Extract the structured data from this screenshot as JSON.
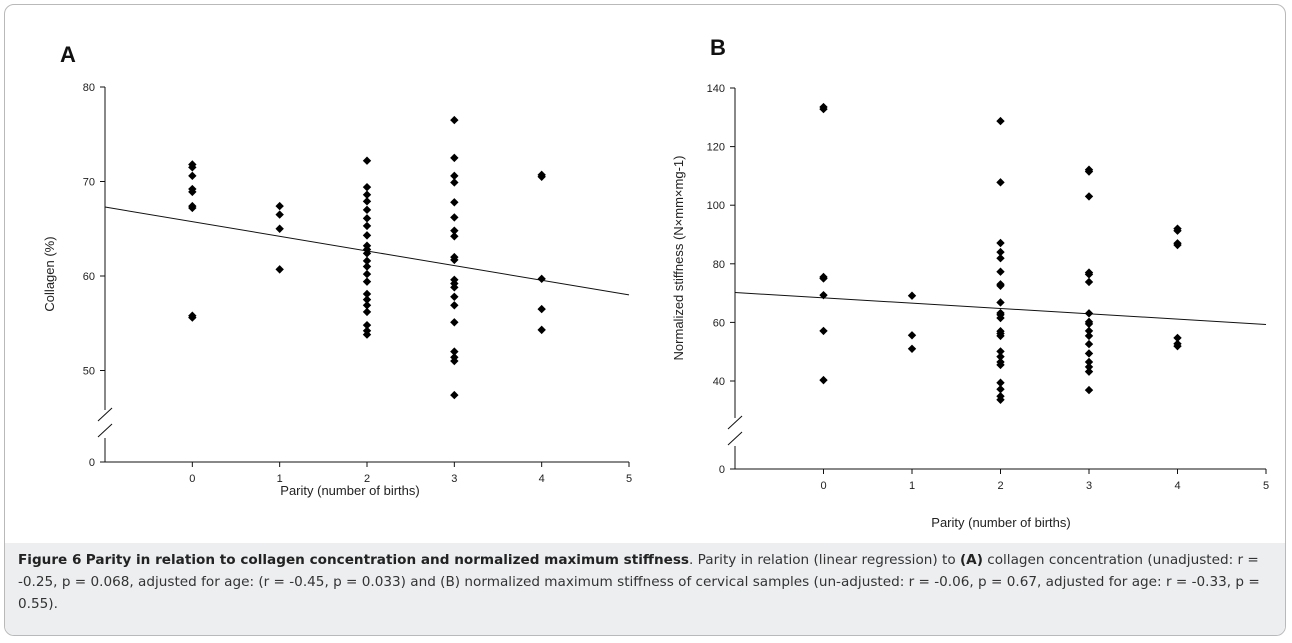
{
  "chart_data": [
    {
      "type": "scatter",
      "panel_label": "A",
      "xlabel": "Parity (number of births)",
      "ylabel": "Collagen (%)",
      "xlim": [
        -1,
        5
      ],
      "ylim_displayed": [
        45,
        80
      ],
      "axis_break": true,
      "x_ticks": [
        "0",
        "1",
        "2",
        "3",
        "4",
        "5"
      ],
      "y_ticks": [
        "0",
        "50",
        "60",
        "70",
        "80"
      ],
      "points": [
        [
          0,
          71.8
        ],
        [
          0,
          71.5
        ],
        [
          0,
          70.6
        ],
        [
          0,
          69.2
        ],
        [
          0,
          68.9
        ],
        [
          0,
          67.4
        ],
        [
          0,
          67.2
        ],
        [
          0,
          55.8
        ],
        [
          0,
          55.6
        ],
        [
          1,
          67.4
        ],
        [
          1,
          66.5
        ],
        [
          1,
          65.0
        ],
        [
          1,
          60.7
        ],
        [
          2,
          72.2
        ],
        [
          2,
          69.4
        ],
        [
          2,
          68.6
        ],
        [
          2,
          67.9
        ],
        [
          2,
          67.0
        ],
        [
          2,
          66.1
        ],
        [
          2,
          65.3
        ],
        [
          2,
          64.3
        ],
        [
          2,
          63.2
        ],
        [
          2,
          62.8
        ],
        [
          2,
          62.4
        ],
        [
          2,
          61.6
        ],
        [
          2,
          61.0
        ],
        [
          2,
          60.2
        ],
        [
          2,
          59.4
        ],
        [
          2,
          58.1
        ],
        [
          2,
          57.5
        ],
        [
          2,
          56.9
        ],
        [
          2,
          56.2
        ],
        [
          2,
          54.8
        ],
        [
          2,
          54.2
        ],
        [
          2,
          53.8
        ],
        [
          3,
          76.5
        ],
        [
          3,
          72.5
        ],
        [
          3,
          70.6
        ],
        [
          3,
          69.9
        ],
        [
          3,
          67.8
        ],
        [
          3,
          66.2
        ],
        [
          3,
          64.8
        ],
        [
          3,
          64.2
        ],
        [
          3,
          62.0
        ],
        [
          3,
          61.7
        ],
        [
          3,
          59.6
        ],
        [
          3,
          59.2
        ],
        [
          3,
          58.8
        ],
        [
          3,
          57.8
        ],
        [
          3,
          56.9
        ],
        [
          3,
          55.1
        ],
        [
          3,
          52.0
        ],
        [
          3,
          51.4
        ],
        [
          3,
          51.0
        ],
        [
          3,
          47.4
        ],
        [
          4,
          70.7
        ],
        [
          4,
          70.5
        ],
        [
          4,
          59.7
        ],
        [
          4,
          56.5
        ],
        [
          4,
          54.3
        ]
      ],
      "regression_line": [
        [
          -1,
          67.3
        ],
        [
          5,
          58.0
        ]
      ]
    },
    {
      "type": "scatter",
      "panel_label": "B",
      "xlabel": "Parity (number of births)",
      "ylabel": "Normalized stiffness (N×mm×mg-1)",
      "xlim": [
        -1,
        5
      ],
      "ylim_displayed": [
        30,
        140
      ],
      "axis_break": true,
      "x_ticks": [
        "0",
        "1",
        "2",
        "3",
        "4",
        "5"
      ],
      "y_ticks": [
        "0",
        "40",
        "60",
        "80",
        "100",
        "120",
        "140"
      ],
      "points": [
        [
          0,
          133.5
        ],
        [
          0,
          132.8
        ],
        [
          0,
          75.5
        ],
        [
          0,
          75.0
        ],
        [
          0,
          69.3
        ],
        [
          0,
          57.1
        ],
        [
          0,
          40.3
        ],
        [
          1,
          69.1
        ],
        [
          1,
          55.6
        ],
        [
          1,
          51.0
        ],
        [
          2,
          128.7
        ],
        [
          2,
          107.8
        ],
        [
          2,
          87.1
        ],
        [
          2,
          84.0
        ],
        [
          2,
          81.9
        ],
        [
          2,
          77.3
        ],
        [
          2,
          73.0
        ],
        [
          2,
          72.5
        ],
        [
          2,
          66.8
        ],
        [
          2,
          63.2
        ],
        [
          2,
          62.6
        ],
        [
          2,
          61.5
        ],
        [
          2,
          57.0
        ],
        [
          2,
          56.2
        ],
        [
          2,
          55.4
        ],
        [
          2,
          50.1
        ],
        [
          2,
          48.3
        ],
        [
          2,
          46.5
        ],
        [
          2,
          45.5
        ],
        [
          2,
          39.4
        ],
        [
          2,
          37.2
        ],
        [
          2,
          34.8
        ],
        [
          2,
          33.6
        ],
        [
          3,
          112.1
        ],
        [
          3,
          111.5
        ],
        [
          3,
          103.0
        ],
        [
          3,
          77.0
        ],
        [
          3,
          76.4
        ],
        [
          3,
          73.8
        ],
        [
          3,
          63.1
        ],
        [
          3,
          60.2
        ],
        [
          3,
          59.5
        ],
        [
          3,
          57.1
        ],
        [
          3,
          55.4
        ],
        [
          3,
          52.6
        ],
        [
          3,
          49.4
        ],
        [
          3,
          46.5
        ],
        [
          3,
          44.8
        ],
        [
          3,
          43.2
        ],
        [
          3,
          36.9
        ],
        [
          4,
          92.0
        ],
        [
          4,
          91.3
        ],
        [
          4,
          87.0
        ],
        [
          4,
          86.4
        ],
        [
          4,
          54.7
        ],
        [
          4,
          52.7
        ],
        [
          4,
          51.9
        ]
      ],
      "regression_line": [
        [
          -1,
          70.2
        ],
        [
          5,
          59.3
        ]
      ]
    }
  ],
  "caption": {
    "figure_label": "Figure 6",
    "title": "Parity in relation to collagen concentration and normalized maximum stiffness",
    "text_1": ". Parity in relation (linear regression) to ",
    "bold_a": "(A)",
    "text_2": " collagen concentration (unadjusted: r = -0.25, p = 0.068, adjusted for age: (r = -0.45, p = 0.033) and (B) normalized maximum stiffness of cervical samples (un-adjusted: r = -0.06, p = 0.67, adjusted for age: r = -0.33, p = 0.55)."
  }
}
